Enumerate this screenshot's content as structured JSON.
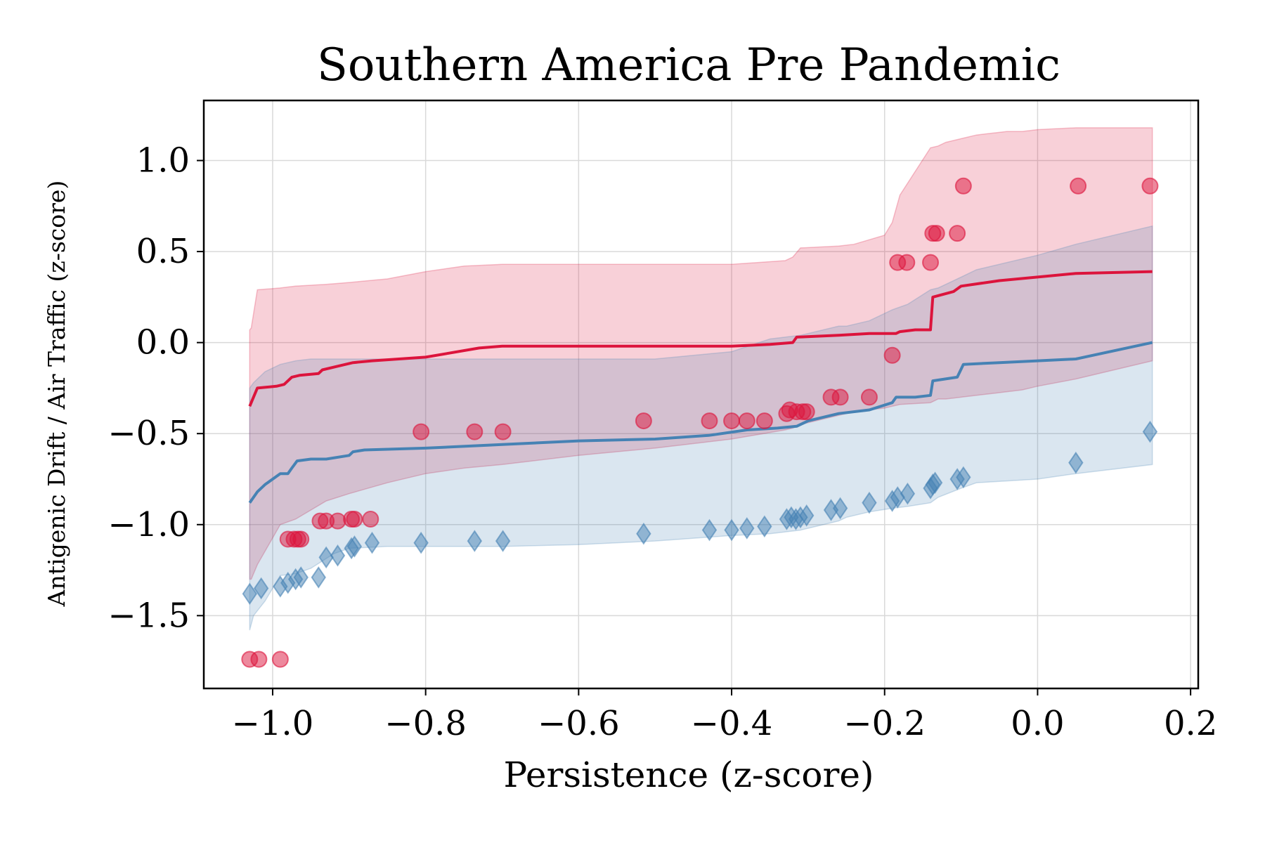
{
  "chart_data": {
    "type": "scatter",
    "title": "Southern America Pre Pandemic",
    "xlabel": "Persistence (z-score)",
    "ylabel": "Antigenic Drift / Air Traffic (z-score)",
    "xlim": [
      -1.09,
      0.21
    ],
    "ylim": [
      -1.9,
      1.33
    ],
    "xticks": [
      -1.0,
      -0.8,
      -0.6,
      -0.4,
      -0.2,
      0.0,
      0.2
    ],
    "xtick_labels": [
      "−1.0",
      "−0.8",
      "−0.6",
      "−0.4",
      "−0.2",
      "0.0",
      "0.2"
    ],
    "yticks": [
      1.0,
      0.5,
      0.0,
      -0.5,
      -1.0,
      -1.5
    ],
    "ytick_labels": [
      "1.0",
      "0.5",
      "0.0",
      "−0.5",
      "−1.0",
      "−1.5"
    ],
    "grid": true,
    "colors": {
      "red": "#dc143c",
      "blue": "#4682b4"
    },
    "series": [
      {
        "kind": "band",
        "color": "#dc143c",
        "x": [
          -1.03,
          -1.028,
          -1.02,
          -0.99,
          -0.97,
          -0.93,
          -0.9,
          -0.85,
          -0.8,
          -0.75,
          -0.7,
          -0.6,
          -0.5,
          -0.4,
          -0.33,
          -0.32,
          -0.31,
          -0.26,
          -0.24,
          -0.2,
          -0.19,
          -0.18,
          -0.14,
          -0.13,
          -0.12,
          -0.1,
          -0.08,
          -0.06,
          -0.04,
          -0.02,
          0.0,
          0.05,
          0.15
        ],
        "upper": [
          0.07,
          0.08,
          0.29,
          0.3,
          0.31,
          0.32,
          0.33,
          0.35,
          0.39,
          0.42,
          0.43,
          0.43,
          0.43,
          0.43,
          0.45,
          0.47,
          0.52,
          0.53,
          0.54,
          0.59,
          0.66,
          0.81,
          1.07,
          1.08,
          1.1,
          1.12,
          1.14,
          1.15,
          1.16,
          1.16,
          1.17,
          1.18,
          1.18
        ],
        "lower": [
          -1.3,
          -1.3,
          -1.22,
          -1.0,
          -0.97,
          -0.87,
          -0.83,
          -0.77,
          -0.72,
          -0.69,
          -0.67,
          -0.62,
          -0.58,
          -0.53,
          -0.48,
          -0.47,
          -0.45,
          -0.4,
          -0.38,
          -0.36,
          -0.35,
          -0.34,
          -0.33,
          -0.31,
          -0.31,
          -0.3,
          -0.29,
          -0.28,
          -0.27,
          -0.26,
          -0.24,
          -0.2,
          -0.1
        ]
      },
      {
        "kind": "band",
        "color": "#4682b4",
        "x": [
          -1.03,
          -1.025,
          -1.01,
          -0.99,
          -0.97,
          -0.95,
          -0.92,
          -0.9,
          -0.85,
          -0.8,
          -0.75,
          -0.7,
          -0.6,
          -0.5,
          -0.4,
          -0.35,
          -0.31,
          -0.3,
          -0.26,
          -0.25,
          -0.22,
          -0.19,
          -0.17,
          -0.14,
          -0.13,
          -0.1,
          -0.08,
          0.0,
          0.05,
          0.15
        ],
        "upper": [
          -0.25,
          -0.22,
          -0.16,
          -0.12,
          -0.1,
          -0.09,
          -0.09,
          -0.09,
          -0.09,
          -0.09,
          -0.09,
          -0.09,
          -0.09,
          -0.09,
          -0.05,
          0.02,
          0.04,
          0.05,
          0.09,
          0.09,
          0.12,
          0.18,
          0.21,
          0.29,
          0.3,
          0.36,
          0.4,
          0.48,
          0.54,
          0.64
        ],
        "lower": [
          -1.58,
          -1.5,
          -1.42,
          -1.28,
          -1.27,
          -1.24,
          -1.16,
          -1.13,
          -1.12,
          -1.12,
          -1.12,
          -1.12,
          -1.11,
          -1.09,
          -1.06,
          -1.05,
          -1.03,
          -1.02,
          -0.98,
          -0.96,
          -0.93,
          -0.91,
          -0.9,
          -0.88,
          -0.85,
          -0.8,
          -0.77,
          -0.75,
          -0.72,
          -0.67
        ]
      },
      {
        "kind": "line",
        "color": "#dc143c",
        "x": [
          -1.03,
          -1.02,
          -0.995,
          -0.985,
          -0.975,
          -0.965,
          -0.94,
          -0.935,
          -0.915,
          -0.895,
          -0.87,
          -0.8,
          -0.73,
          -0.7,
          -0.6,
          -0.5,
          -0.4,
          -0.35,
          -0.32,
          -0.315,
          -0.26,
          -0.22,
          -0.185,
          -0.18,
          -0.16,
          -0.14,
          -0.137,
          -0.11,
          -0.1,
          -0.05,
          0.0,
          0.05,
          0.15
        ],
        "y": [
          -0.35,
          -0.25,
          -0.24,
          -0.23,
          -0.19,
          -0.18,
          -0.17,
          -0.15,
          -0.13,
          -0.11,
          -0.1,
          -0.08,
          -0.03,
          -0.02,
          -0.02,
          -0.02,
          -0.02,
          -0.01,
          0.0,
          0.03,
          0.04,
          0.05,
          0.05,
          0.06,
          0.07,
          0.07,
          0.25,
          0.28,
          0.31,
          0.34,
          0.36,
          0.38,
          0.39
        ]
      },
      {
        "kind": "line",
        "color": "#4682b4",
        "x": [
          -1.03,
          -1.02,
          -1.01,
          -0.99,
          -0.98,
          -0.975,
          -0.968,
          -0.95,
          -0.93,
          -0.9,
          -0.895,
          -0.88,
          -0.8,
          -0.7,
          -0.6,
          -0.5,
          -0.43,
          -0.38,
          -0.34,
          -0.315,
          -0.3,
          -0.26,
          -0.22,
          -0.19,
          -0.185,
          -0.16,
          -0.14,
          -0.137,
          -0.105,
          -0.097,
          -0.05,
          0.0,
          0.05,
          0.15
        ],
        "y": [
          -0.88,
          -0.82,
          -0.78,
          -0.72,
          -0.72,
          -0.69,
          -0.65,
          -0.64,
          -0.64,
          -0.62,
          -0.6,
          -0.59,
          -0.58,
          -0.56,
          -0.54,
          -0.53,
          -0.51,
          -0.48,
          -0.47,
          -0.46,
          -0.43,
          -0.39,
          -0.37,
          -0.33,
          -0.3,
          -0.3,
          -0.29,
          -0.21,
          -0.19,
          -0.12,
          -0.11,
          -0.1,
          -0.09,
          0.0
        ]
      },
      {
        "kind": "scatter",
        "marker": "circle",
        "color": "#dc143c",
        "points": [
          [
            -1.03,
            -1.74
          ],
          [
            -1.018,
            -1.74
          ],
          [
            -0.99,
            -1.74
          ],
          [
            -0.98,
            -1.08
          ],
          [
            -0.972,
            -1.08
          ],
          [
            -0.967,
            -1.08
          ],
          [
            -0.963,
            -1.08
          ],
          [
            -0.938,
            -0.98
          ],
          [
            -0.93,
            -0.98
          ],
          [
            -0.915,
            -0.98
          ],
          [
            -0.897,
            -0.97
          ],
          [
            -0.893,
            -0.97
          ],
          [
            -0.872,
            -0.97
          ],
          [
            -0.806,
            -0.49
          ],
          [
            -0.736,
            -0.49
          ],
          [
            -0.699,
            -0.49
          ],
          [
            -0.515,
            -0.43
          ],
          [
            -0.429,
            -0.43
          ],
          [
            -0.4,
            -0.43
          ],
          [
            -0.38,
            -0.43
          ],
          [
            -0.357,
            -0.43
          ],
          [
            -0.328,
            -0.39
          ],
          [
            -0.324,
            -0.37
          ],
          [
            -0.315,
            -0.38
          ],
          [
            -0.307,
            -0.38
          ],
          [
            -0.302,
            -0.38
          ],
          [
            -0.27,
            -0.3
          ],
          [
            -0.258,
            -0.3
          ],
          [
            -0.22,
            -0.3
          ],
          [
            -0.19,
            -0.07
          ],
          [
            -0.183,
            0.44
          ],
          [
            -0.171,
            0.44
          ],
          [
            -0.14,
            0.44
          ],
          [
            -0.137,
            0.6
          ],
          [
            -0.132,
            0.6
          ],
          [
            -0.105,
            0.6
          ],
          [
            -0.097,
            0.86
          ],
          [
            0.053,
            0.86
          ],
          [
            0.147,
            0.86
          ]
        ]
      },
      {
        "kind": "scatter",
        "marker": "diamond",
        "color": "#4682b4",
        "points": [
          [
            -1.03,
            -1.38
          ],
          [
            -1.015,
            -1.35
          ],
          [
            -0.99,
            -1.34
          ],
          [
            -0.98,
            -1.32
          ],
          [
            -0.97,
            -1.3
          ],
          [
            -0.963,
            -1.29
          ],
          [
            -0.94,
            -1.29
          ],
          [
            -0.93,
            -1.18
          ],
          [
            -0.915,
            -1.17
          ],
          [
            -0.897,
            -1.13
          ],
          [
            -0.893,
            -1.12
          ],
          [
            -0.87,
            -1.1
          ],
          [
            -0.806,
            -1.1
          ],
          [
            -0.736,
            -1.09
          ],
          [
            -0.699,
            -1.09
          ],
          [
            -0.515,
            -1.05
          ],
          [
            -0.429,
            -1.03
          ],
          [
            -0.4,
            -1.03
          ],
          [
            -0.38,
            -1.02
          ],
          [
            -0.357,
            -1.01
          ],
          [
            -0.328,
            -0.97
          ],
          [
            -0.322,
            -0.96
          ],
          [
            -0.316,
            -0.97
          ],
          [
            -0.31,
            -0.96
          ],
          [
            -0.302,
            -0.95
          ],
          [
            -0.27,
            -0.92
          ],
          [
            -0.258,
            -0.91
          ],
          [
            -0.22,
            -0.88
          ],
          [
            -0.19,
            -0.87
          ],
          [
            -0.183,
            -0.85
          ],
          [
            -0.17,
            -0.83
          ],
          [
            -0.14,
            -0.8
          ],
          [
            -0.137,
            -0.78
          ],
          [
            -0.134,
            -0.77
          ],
          [
            -0.105,
            -0.75
          ],
          [
            -0.097,
            -0.74
          ],
          [
            0.05,
            -0.66
          ],
          [
            0.147,
            -0.49
          ]
        ]
      }
    ]
  }
}
